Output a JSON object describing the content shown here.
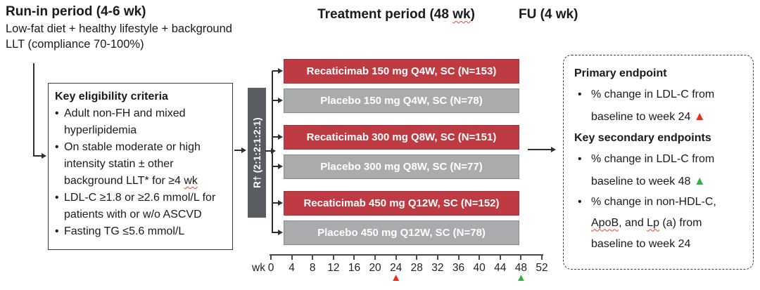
{
  "glyphs": {
    "bullet": "•",
    "triangle": "▲"
  },
  "colors": {
    "drug_bar": "#bf3b43",
    "placebo_bar": "#a9abad",
    "randomization_bar": "#595d61",
    "marker_red": "#ee2c1e",
    "marker_green": "#33b04a",
    "squiggle": "#e8442c"
  },
  "headings": {
    "run_in_title": "Run-in period (4-6 wk)",
    "run_in_subtitle": "Low-fat diet + healthy lifestyle + background LLT (compliance 70-100%)",
    "treatment": {
      "pre": "Treatment period (48 ",
      "wavy": "wk",
      "post": ")"
    },
    "fu_title": "FU (4 wk)"
  },
  "eligibility": {
    "title": "Key eligibility criteria",
    "bullets": [
      {
        "pre": "Adult non-FH and mixed hyperlipidemia",
        "wavy": "",
        "post": ""
      },
      {
        "pre": "On stable moderate or high intensity statin ± other background LLT* for ≥4 ",
        "wavy": "wk",
        "post": ""
      },
      {
        "pre": "LDL-C ≥1.8 or ≥2.6 mmol/L for patients with or w/o ASCVD",
        "wavy": "",
        "post": ""
      },
      {
        "pre": "Fasting TG ≤5.6 mmol/L",
        "wavy": "",
        "post": ""
      }
    ]
  },
  "randomization": {
    "label": "R† (2:1:2:1:2:1)"
  },
  "arms": [
    {
      "label": "Recaticimab 150 mg Q4W, SC (N=153)",
      "type": "drug"
    },
    {
      "label": "Placebo 150 mg Q4W, SC (N=78)",
      "type": "placebo"
    },
    {
      "label": "Recaticimab 300 mg Q8W, SC (N=151)",
      "type": "drug"
    },
    {
      "label": "Placebo 300 mg Q8W, SC (N=77)",
      "type": "placebo"
    },
    {
      "label": "Recaticimab 450 mg Q12W, SC (N=152)",
      "type": "drug"
    },
    {
      "label": "Placebo 450 mg Q12W, SC (N=78)",
      "type": "placebo"
    }
  ],
  "axis": {
    "unit_label": "wk",
    "ticks": [
      "0",
      "4",
      "8",
      "12",
      "16",
      "20",
      "24",
      "28",
      "32",
      "36",
      "40",
      "44",
      "48",
      "52"
    ],
    "max_week": 52,
    "red_marker_week": 24,
    "green_marker_week": 48
  },
  "endpoints": {
    "primary_title": "Primary endpoint",
    "primary_bullet_text": "% change in LDL-C from baseline to week 24 ",
    "secondary_title": "Key secondary endpoints",
    "secondary_bullet1_text": "% change in LDL-C from baseline to week 48 ",
    "secondary_bullet2": {
      "p1": "% change in non-HDL-C, ",
      "w1": "ApoB",
      "p2": ", and ",
      "w2": "Lp",
      "p3": " (a) from baseline to week 24"
    }
  }
}
